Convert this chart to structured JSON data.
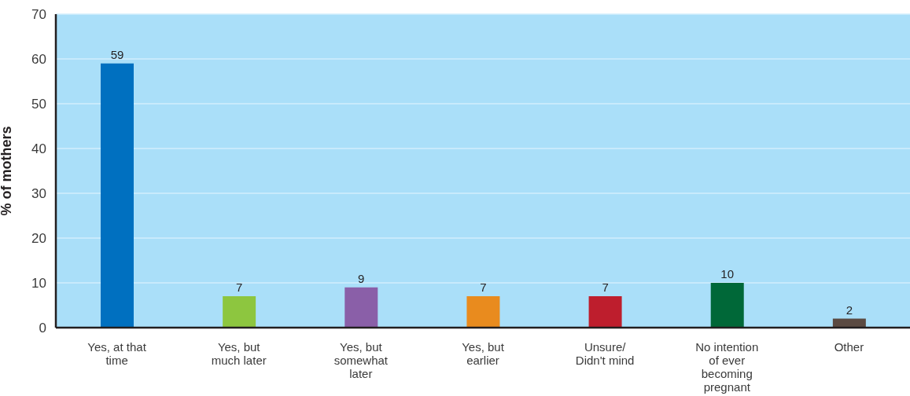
{
  "chart_data": {
    "type": "bar",
    "ylabel": "% of mothers",
    "categories": [
      "Yes, at that time",
      "Yes, but much later",
      "Yes, but somewhat later",
      "Yes, but earlier",
      "Unsure/ Didn't mind",
      "No intention of ever becoming pregnant",
      "Other"
    ],
    "values": [
      59,
      7,
      9,
      7,
      7,
      10,
      2
    ],
    "colors": [
      "#0070c0",
      "#8dc63f",
      "#8a5fa8",
      "#e98b1e",
      "#be1e2d",
      "#006838",
      "#5b4a42"
    ],
    "ylim": [
      0,
      70
    ],
    "yticks": [
      0,
      10,
      20,
      30,
      40,
      50,
      60,
      70
    ],
    "grid": "y",
    "data_labels": true
  }
}
